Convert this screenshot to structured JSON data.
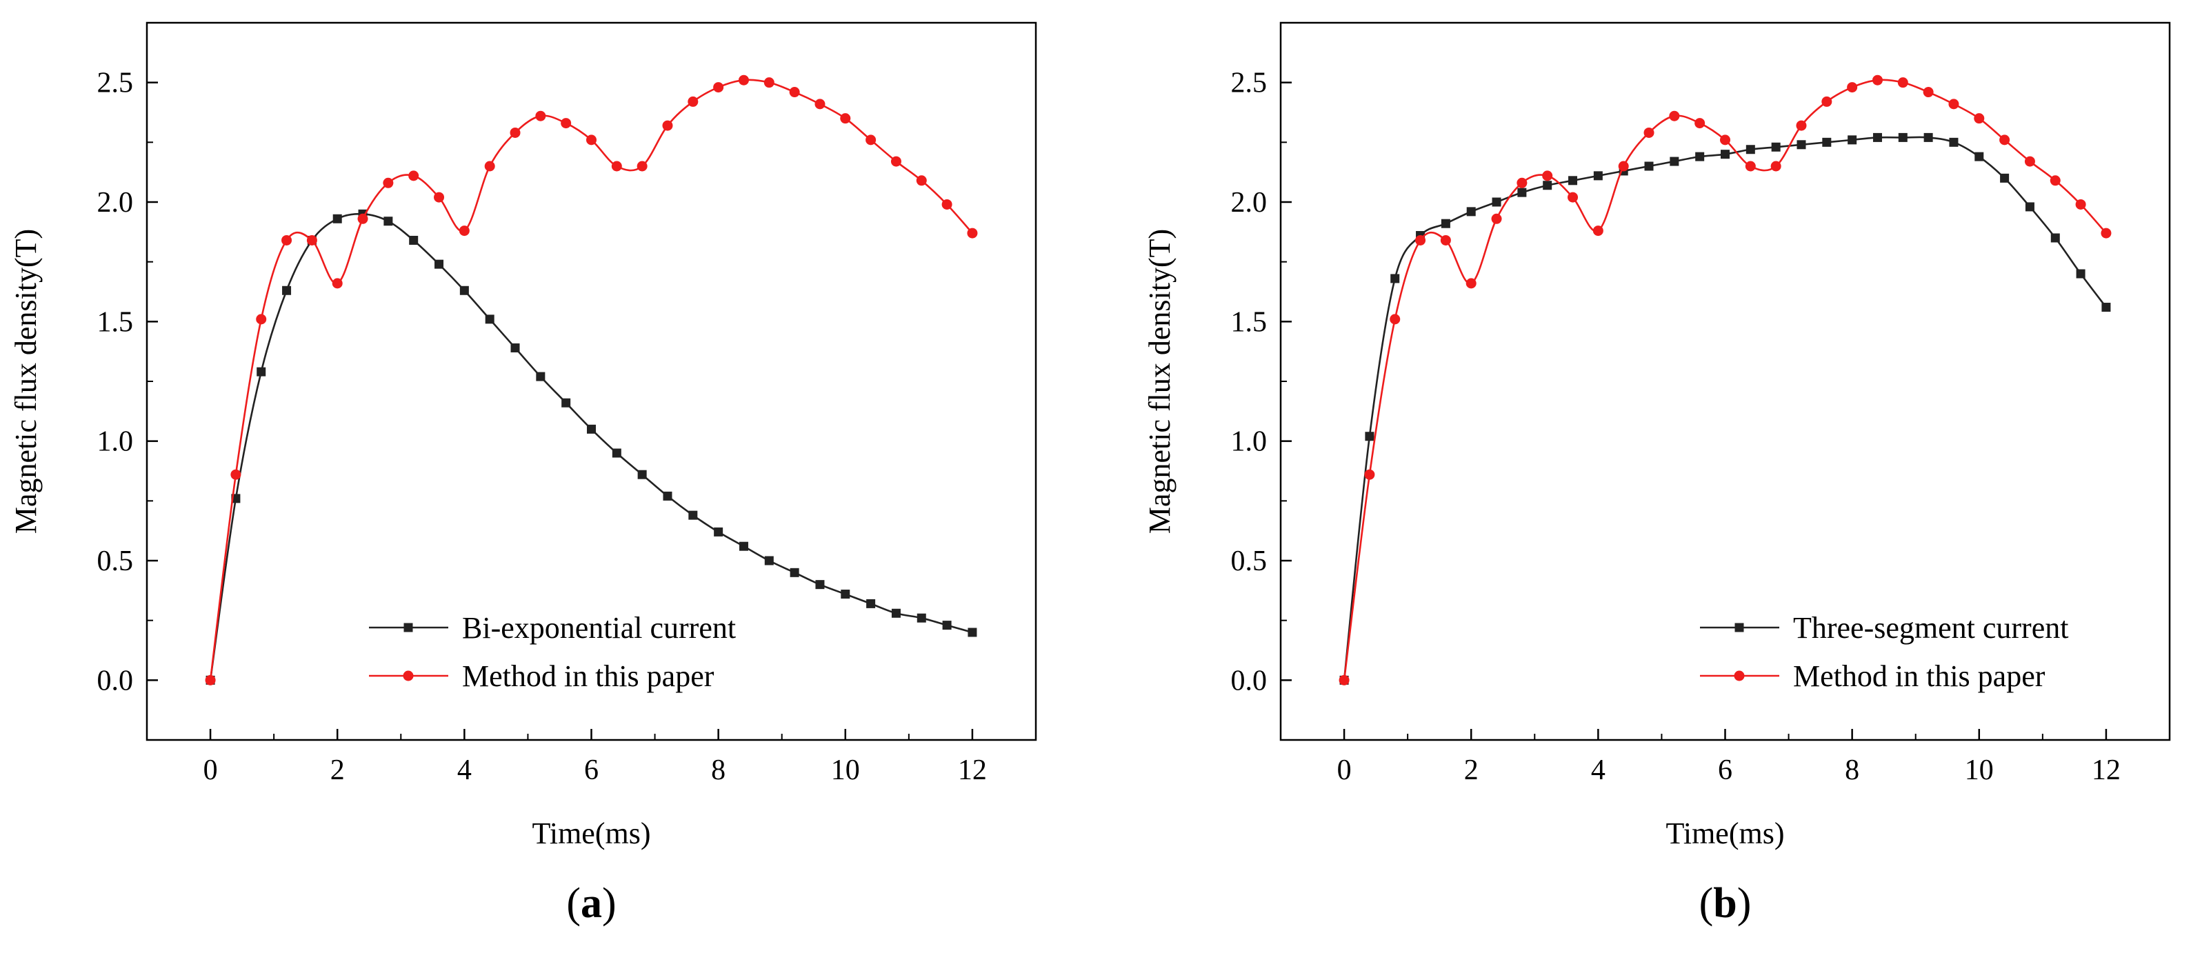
{
  "colors": {
    "black_series": "#222222",
    "red_series": "#ee1c1c",
    "axes": "#000000"
  },
  "chart_data": [
    {
      "type": "line",
      "panel_label": {
        "open": "(",
        "letter": "a",
        "close": ")"
      },
      "title": "",
      "xlabel": "Time(ms)",
      "ylabel": "Magnetic flux density(T)",
      "xlim": [
        -1,
        13
      ],
      "ylim": [
        -0.25,
        2.75
      ],
      "xticks": [
        0,
        2,
        4,
        6,
        8,
        10,
        12
      ],
      "yticks": [
        0.0,
        0.5,
        1.0,
        1.5,
        2.0,
        2.5
      ],
      "xtick_labels": [
        "0",
        "2",
        "4",
        "6",
        "8",
        "10",
        "12"
      ],
      "ytick_labels": [
        "0.0",
        "0.5",
        "1.0",
        "1.5",
        "2.0",
        "2.5"
      ],
      "grid": false,
      "legend_position": "bottom-right",
      "series": [
        {
          "name": "Bi-exponential current",
          "color": "#222222",
          "marker": "square",
          "x": [
            0,
            0.4,
            0.8,
            1.2,
            1.6,
            2.0,
            2.4,
            2.8,
            3.2,
            3.6,
            4.0,
            4.4,
            4.8,
            5.2,
            5.6,
            6.0,
            6.4,
            6.8,
            7.2,
            7.6,
            8.0,
            8.4,
            8.8,
            9.2,
            9.6,
            10.0,
            10.4,
            10.8,
            11.2,
            11.6,
            12.0
          ],
          "values": [
            0.0,
            0.76,
            1.29,
            1.63,
            1.84,
            1.93,
            1.95,
            1.92,
            1.84,
            1.74,
            1.63,
            1.51,
            1.39,
            1.27,
            1.16,
            1.05,
            0.95,
            0.86,
            0.77,
            0.69,
            0.62,
            0.56,
            0.5,
            0.45,
            0.4,
            0.36,
            0.32,
            0.28,
            0.26,
            0.23,
            0.2
          ]
        },
        {
          "name": "Method in this paper",
          "color": "#ee1c1c",
          "marker": "circle",
          "x": [
            0,
            0.4,
            0.8,
            1.2,
            1.6,
            2.0,
            2.4,
            2.8,
            3.2,
            3.6,
            4.0,
            4.4,
            4.8,
            5.2,
            5.6,
            6.0,
            6.4,
            6.8,
            7.2,
            7.6,
            8.0,
            8.4,
            8.8,
            9.2,
            9.6,
            10.0,
            10.4,
            10.8,
            11.2,
            11.6,
            12.0
          ],
          "values": [
            0.0,
            0.86,
            1.51,
            1.84,
            1.84,
            1.66,
            1.93,
            2.08,
            2.11,
            2.02,
            1.88,
            2.15,
            2.29,
            2.36,
            2.33,
            2.26,
            2.15,
            2.15,
            2.32,
            2.42,
            2.48,
            2.51,
            2.5,
            2.46,
            2.41,
            2.35,
            2.26,
            2.17,
            2.09,
            1.99,
            1.87
          ]
        }
      ]
    },
    {
      "type": "line",
      "panel_label": {
        "open": "(",
        "letter": "b",
        "close": ")"
      },
      "title": "",
      "xlabel": "Time(ms)",
      "ylabel": "Magnetic flux density(T)",
      "xlim": [
        -1,
        13
      ],
      "ylim": [
        -0.25,
        2.75
      ],
      "xticks": [
        0,
        2,
        4,
        6,
        8,
        10,
        12
      ],
      "yticks": [
        0.0,
        0.5,
        1.0,
        1.5,
        2.0,
        2.5
      ],
      "xtick_labels": [
        "0",
        "2",
        "4",
        "6",
        "8",
        "10",
        "12"
      ],
      "ytick_labels": [
        "0.0",
        "0.5",
        "1.0",
        "1.5",
        "2.0",
        "2.5"
      ],
      "grid": false,
      "legend_position": "bottom-right",
      "series": [
        {
          "name": "Three-segment current",
          "color": "#222222",
          "marker": "square",
          "x": [
            0,
            0.4,
            0.8,
            1.2,
            1.6,
            2.0,
            2.4,
            2.8,
            3.2,
            3.6,
            4.0,
            4.4,
            4.8,
            5.2,
            5.6,
            6.0,
            6.4,
            6.8,
            7.2,
            7.6,
            8.0,
            8.4,
            8.8,
            9.2,
            9.6,
            10.0,
            10.4,
            10.8,
            11.2,
            11.6,
            12.0
          ],
          "values": [
            0.0,
            1.02,
            1.68,
            1.86,
            1.91,
            1.96,
            2.0,
            2.04,
            2.07,
            2.09,
            2.11,
            2.13,
            2.15,
            2.17,
            2.19,
            2.2,
            2.22,
            2.23,
            2.24,
            2.25,
            2.26,
            2.27,
            2.27,
            2.27,
            2.25,
            2.19,
            2.1,
            1.98,
            1.85,
            1.7,
            1.56
          ]
        },
        {
          "name": "Method in this paper",
          "color": "#ee1c1c",
          "marker": "circle",
          "x": [
            0,
            0.4,
            0.8,
            1.2,
            1.6,
            2.0,
            2.4,
            2.8,
            3.2,
            3.6,
            4.0,
            4.4,
            4.8,
            5.2,
            5.6,
            6.0,
            6.4,
            6.8,
            7.2,
            7.6,
            8.0,
            8.4,
            8.8,
            9.2,
            9.6,
            10.0,
            10.4,
            10.8,
            11.2,
            11.6,
            12.0
          ],
          "values": [
            0.0,
            0.86,
            1.51,
            1.84,
            1.84,
            1.66,
            1.93,
            2.08,
            2.11,
            2.02,
            1.88,
            2.15,
            2.29,
            2.36,
            2.33,
            2.26,
            2.15,
            2.15,
            2.32,
            2.42,
            2.48,
            2.51,
            2.5,
            2.46,
            2.41,
            2.35,
            2.26,
            2.17,
            2.09,
            1.99,
            1.87
          ]
        }
      ]
    }
  ]
}
